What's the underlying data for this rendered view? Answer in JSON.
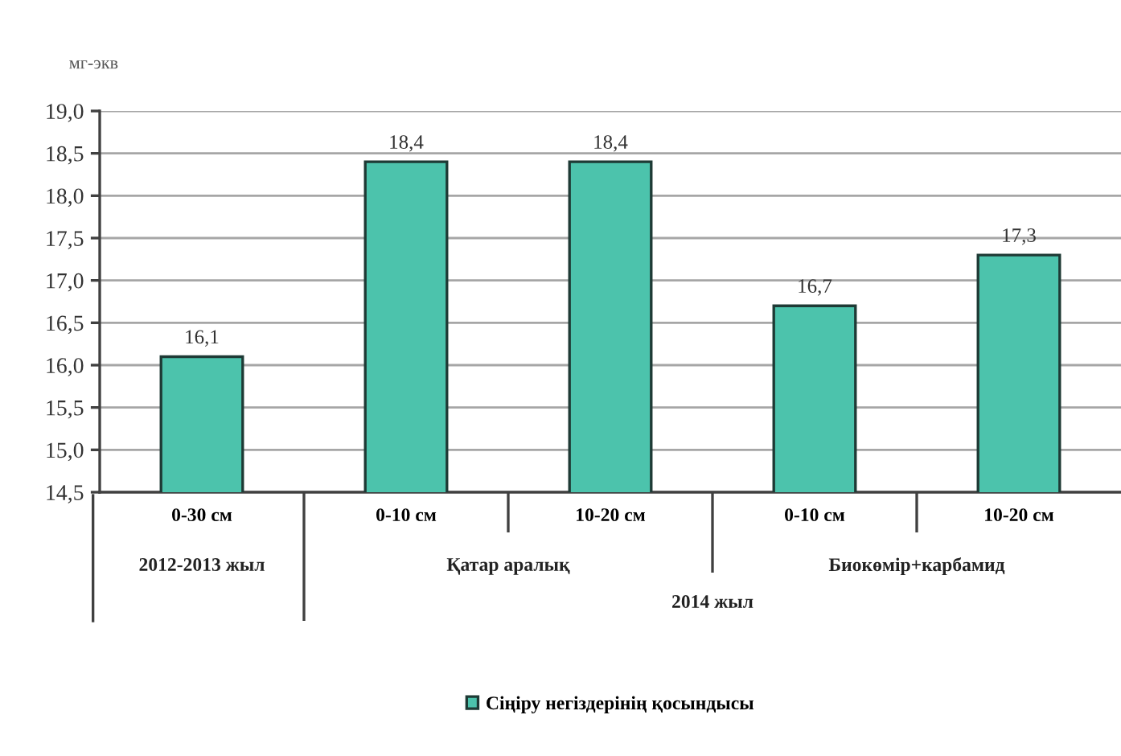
{
  "chart_data": {
    "type": "bar",
    "ylabel": "мг-экв",
    "categories": [
      "0-30 см",
      "0-10 см",
      "10-20 см",
      "0-10 см",
      "10-20 см"
    ],
    "series": [
      {
        "name": "Сіңіру негіздерінің қосындысы",
        "color": "#4cc3ac",
        "values": [
          16.1,
          18.4,
          18.4,
          16.7,
          17.3
        ],
        "value_labels": [
          "16,1",
          "18,4",
          "18,4",
          "16,7",
          "17,3"
        ]
      }
    ],
    "ylim": [
      14.5,
      19.0
    ],
    "yticks": [
      {
        "value": 14.5,
        "label": "14,5"
      },
      {
        "value": 15.0,
        "label": "15,0"
      },
      {
        "value": 15.5,
        "label": "15,5"
      },
      {
        "value": 16.0,
        "label": "16,0"
      },
      {
        "value": 16.5,
        "label": "16,5"
      },
      {
        "value": 17.0,
        "label": "17,0"
      },
      {
        "value": 17.5,
        "label": "17,5"
      },
      {
        "value": 18.0,
        "label": "18,0"
      },
      {
        "value": 18.5,
        "label": "18,5"
      },
      {
        "value": 19.0,
        "label": "19,0"
      }
    ],
    "grid": "y",
    "legend": "bottom",
    "annotations": [
      "2012-2013 жыл",
      "Қатар аралық",
      "Биокөмір+карбамид",
      "2014 жыл"
    ]
  }
}
